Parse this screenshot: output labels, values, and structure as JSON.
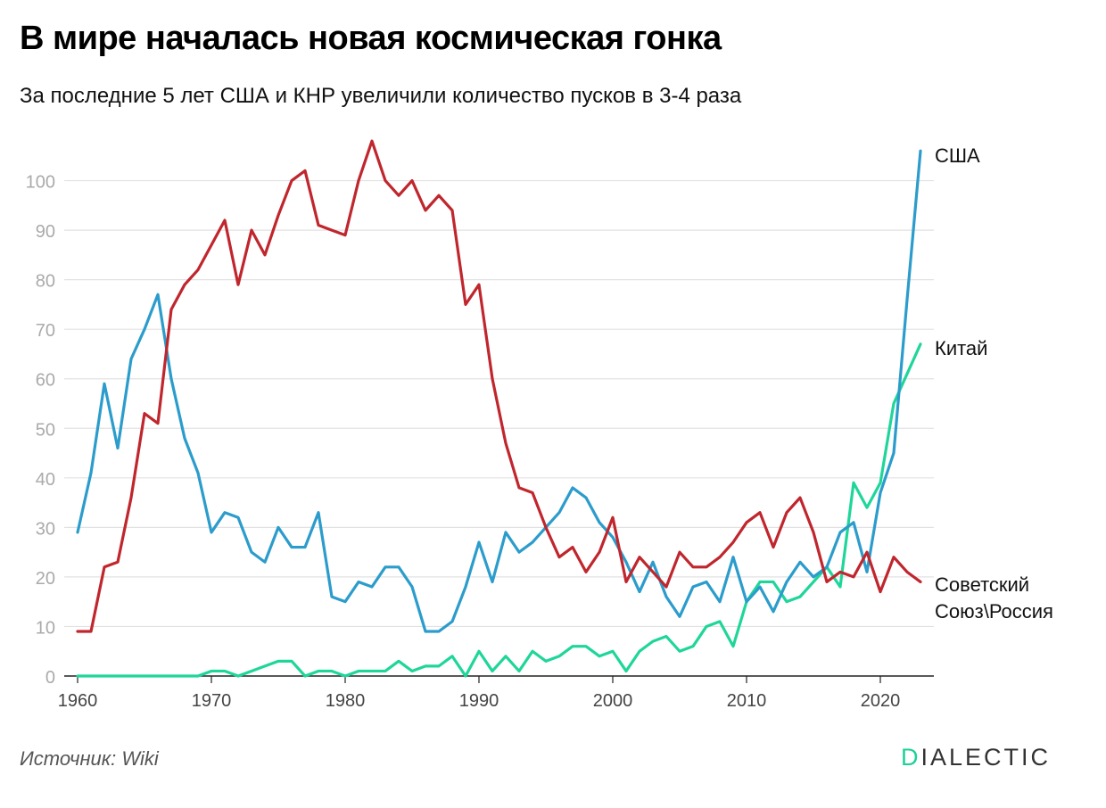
{
  "header": {
    "title": "В мире началась новая космическая гонка",
    "subtitle": "За последние 5 лет США и КНР увеличили количество пусков в 3-4 раза"
  },
  "footer": {
    "source": "Источник: Wiki",
    "logo_first": "D",
    "logo_rest": "IALECTIC",
    "logo_accent_color": "#1bd197"
  },
  "chart_data": {
    "type": "line",
    "x_start": 1960,
    "x_end": 2023,
    "xlim": [
      1959,
      2024
    ],
    "ylim": [
      0,
      110
    ],
    "x_ticks": [
      1960,
      1970,
      1980,
      1990,
      2000,
      2010,
      2020
    ],
    "y_ticks": [
      0,
      10,
      20,
      30,
      40,
      50,
      60,
      70,
      80,
      90,
      100
    ],
    "grid": true,
    "legend": "labels at line ends",
    "series": [
      {
        "name": "США",
        "color": "#2b9ccb",
        "values": [
          29,
          41,
          59,
          46,
          64,
          70,
          77,
          60,
          48,
          41,
          29,
          33,
          32,
          25,
          23,
          30,
          26,
          26,
          33,
          16,
          15,
          19,
          18,
          22,
          22,
          18,
          9,
          9,
          11,
          18,
          27,
          19,
          29,
          25,
          27,
          30,
          33,
          38,
          36,
          31,
          28,
          23,
          17,
          23,
          16,
          12,
          18,
          19,
          15,
          24,
          15,
          18,
          13,
          19,
          23,
          20,
          22,
          29,
          31,
          21,
          37,
          45,
          76,
          106
        ]
      },
      {
        "name": "Советский Союз\\Россия",
        "label_lines": [
          "Советский",
          "Союз\\Россия"
        ],
        "color": "#c0262d",
        "values": [
          9,
          9,
          22,
          23,
          36,
          53,
          51,
          74,
          79,
          82,
          87,
          92,
          79,
          90,
          85,
          93,
          100,
          102,
          91,
          90,
          89,
          100,
          108,
          100,
          97,
          100,
          94,
          97,
          94,
          75,
          79,
          60,
          47,
          38,
          37,
          30,
          24,
          26,
          21,
          25,
          32,
          19,
          24,
          21,
          18,
          25,
          22,
          22,
          24,
          27,
          31,
          33,
          26,
          33,
          36,
          29,
          19,
          21,
          20,
          25,
          17,
          24,
          21,
          19
        ]
      },
      {
        "name": "Китай",
        "color": "#1fd69a",
        "values": [
          0,
          0,
          0,
          0,
          0,
          0,
          0,
          0,
          0,
          0,
          1,
          1,
          0,
          1,
          2,
          3,
          3,
          0,
          1,
          1,
          0,
          1,
          1,
          1,
          3,
          1,
          2,
          2,
          4,
          0,
          5,
          1,
          4,
          1,
          5,
          3,
          4,
          6,
          6,
          4,
          5,
          1,
          5,
          7,
          8,
          5,
          6,
          10,
          11,
          6,
          15,
          19,
          19,
          15,
          16,
          19,
          22,
          18,
          39,
          34,
          39,
          55,
          61,
          67
        ]
      }
    ]
  }
}
